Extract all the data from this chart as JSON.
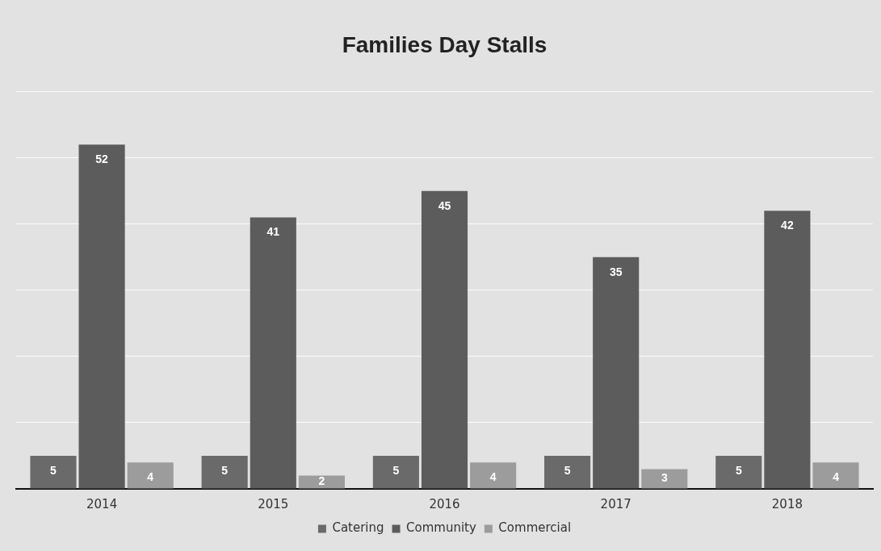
{
  "chart_data": {
    "type": "bar",
    "title": "Families Day Stalls",
    "categories": [
      "2014",
      "2015",
      "2016",
      "2017",
      "2018"
    ],
    "series": [
      {
        "name": "Catering",
        "color": "#6a6a6a",
        "values": [
          5,
          5,
          5,
          5,
          5
        ]
      },
      {
        "name": "Community",
        "color": "#5c5c5c",
        "values": [
          52,
          41,
          45,
          35,
          42
        ]
      },
      {
        "name": "Commercial",
        "color": "#9c9c9c",
        "values": [
          4,
          2,
          4,
          3,
          4
        ]
      }
    ],
    "ylim": [
      0,
      60
    ],
    "yticks": [
      0,
      10,
      20,
      30,
      40,
      50,
      60
    ],
    "tick_labels": "x",
    "grid": "y",
    "legend": "bottom",
    "data_labels": true
  }
}
